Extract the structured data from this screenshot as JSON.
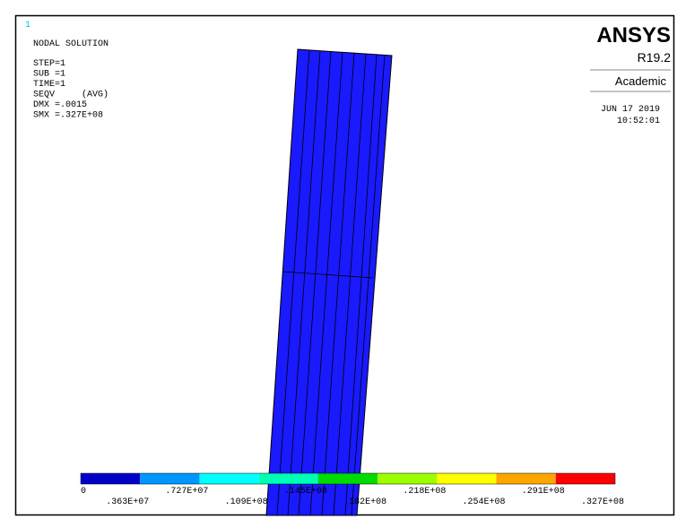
{
  "window_number": "1",
  "info": {
    "lines": [
      "NODAL SOLUTION",
      "STEP=1",
      "SUB =1",
      "TIME=1",
      "SEQV     (AVG)",
      "DMX =.0015",
      "SMX =.327E+08"
    ]
  },
  "logo": {
    "brand": "ANSYS",
    "release": "R19.2",
    "edition": "Academic",
    "date": "JUN 17 2019",
    "time": "10:52:01"
  },
  "legend": {
    "colors": [
      "#0000c8",
      "#0096ff",
      "#00ffff",
      "#00ffb4",
      "#00dc00",
      "#9bff00",
      "#ffff00",
      "#ffa500",
      "#ff0000"
    ],
    "labels": [
      "0",
      ".363E+07",
      ".727E+07",
      ".109E+08",
      ".145E+08",
      ".182E+08",
      ".218E+08",
      ".254E+08",
      ".291E+08",
      ".327E+08"
    ]
  }
}
